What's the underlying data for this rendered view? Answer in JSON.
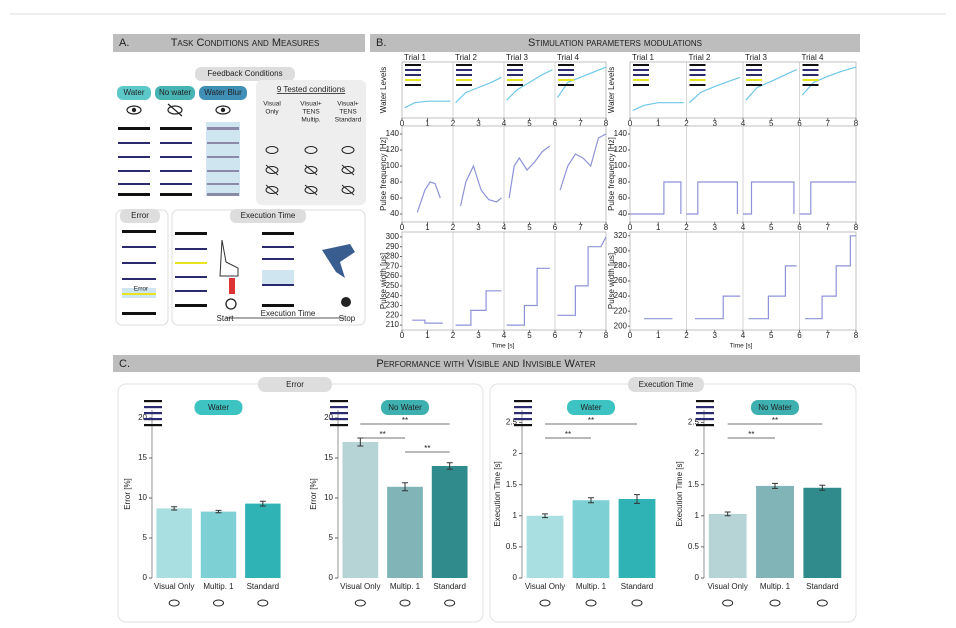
{
  "panel_a": {
    "label": "A.",
    "title": "Task Conditions and Measures",
    "feedback_title": "Feedback Conditions",
    "feedback": [
      "Water",
      "No water",
      "Water Blur"
    ],
    "tested_title": "9 Tested conditions",
    "tested": [
      [
        "Visual",
        "Only"
      ],
      [
        "Visual+",
        "TENS",
        "Multip."
      ],
      [
        "Visual+",
        "TENS",
        "Standard"
      ]
    ],
    "error_title": "Error",
    "error_label": "Error",
    "time_title": "Execution Time",
    "start": "Start",
    "time_label": "Execution Time",
    "stop": "Stop"
  },
  "panel_b": {
    "label": "B.",
    "title": "Stimulation parameters modulations",
    "trials": [
      "Trial 1",
      "Trial 2",
      "Trial 3",
      "Trial 4"
    ],
    "xlabel": "Time [s]"
  },
  "panel_c": {
    "label": "C.",
    "title": "Performance with Visible and Invisible Water",
    "groups": [
      "Error",
      "Execution Time"
    ]
  },
  "chart_data": [
    {
      "type": "line",
      "ylabel": "Water Levels",
      "x": [
        0.1,
        0.5,
        1.0,
        1.5,
        1.9,
        2.0,
        2.1,
        2.5,
        3.0,
        3.5,
        3.9,
        4.0,
        4.1,
        4.5,
        5.0,
        5.5,
        5.9,
        6.0,
        6.1,
        6.5,
        7.0,
        7.5,
        8.0
      ],
      "series": [
        {
          "color": "#6fc7e8",
          "values": [
            0.2,
            0.3,
            0.33,
            0.33,
            0.33,
            null,
            0.3,
            0.5,
            0.6,
            0.7,
            0.8,
            null,
            0.35,
            0.55,
            0.7,
            0.85,
            0.95,
            null,
            0.4,
            0.7,
            0.8,
            0.9,
            1.0
          ]
        }
      ],
      "xlim": [
        0,
        8
      ],
      "xticks": [
        0,
        1,
        2,
        3,
        4,
        5,
        6,
        7,
        8
      ],
      "ylim": [
        0,
        1.1
      ]
    },
    {
      "type": "line",
      "ylabel": "Pulse frequency [Hz]",
      "x": [
        0.6,
        0.9,
        1.1,
        1.3,
        1.5,
        2.0,
        2.3,
        2.5,
        2.8,
        3.1,
        3.4,
        3.7,
        3.9,
        4.0,
        4.2,
        4.4,
        4.6,
        4.9,
        5.2,
        5.5,
        5.8,
        6.0,
        6.2,
        6.5,
        6.8,
        7.1,
        7.4,
        7.7,
        8.0
      ],
      "series": [
        {
          "color": "#8e92d8",
          "values": [
            42,
            70,
            80,
            78,
            60,
            null,
            50,
            80,
            100,
            70,
            58,
            55,
            60,
            null,
            60,
            100,
            110,
            95,
            105,
            118,
            125,
            null,
            70,
            100,
            115,
            110,
            100,
            135,
            140
          ]
        }
      ],
      "xlim": [
        0,
        8
      ],
      "xticks": [
        0,
        1,
        2,
        3,
        4,
        5,
        6,
        7,
        8
      ],
      "ylim": [
        30,
        150
      ],
      "yticks": [
        40,
        60,
        80,
        100,
        120,
        140
      ]
    },
    {
      "type": "line",
      "ylabel": "Pulse width [μs]",
      "x": [
        0.4,
        0.9,
        0.9,
        1.6,
        2.0,
        2.1,
        2.7,
        2.7,
        3.3,
        3.3,
        3.9,
        4.0,
        4.1,
        4.8,
        4.8,
        5.3,
        5.3,
        5.8,
        6.0,
        6.1,
        6.8,
        6.8,
        7.3,
        7.3,
        7.8,
        8.0
      ],
      "series": [
        {
          "color": "#8e92d8",
          "values": [
            215,
            215,
            212,
            212,
            null,
            210,
            210,
            225,
            225,
            245,
            245,
            null,
            210,
            210,
            230,
            230,
            268,
            268,
            null,
            220,
            220,
            250,
            250,
            290,
            290,
            300
          ]
        }
      ],
      "xlim": [
        0,
        8
      ],
      "xticks": [
        0,
        1,
        2,
        3,
        4,
        5,
        6,
        7,
        8
      ],
      "ylim": [
        205,
        305
      ],
      "yticks": [
        210,
        220,
        230,
        240,
        250,
        260,
        270,
        280,
        290,
        300
      ]
    },
    {
      "type": "line",
      "ylabel": "Water Levels",
      "x": [
        0.1,
        0.5,
        1.0,
        1.5,
        1.9,
        2.0,
        2.1,
        2.5,
        3.0,
        3.5,
        3.9,
        4.0,
        4.1,
        4.5,
        5.0,
        5.5,
        5.9,
        6.0,
        6.1,
        6.5,
        7.0,
        7.5,
        8.0
      ],
      "series": [
        {
          "color": "#6fc7e8",
          "values": [
            0.15,
            0.25,
            0.3,
            0.3,
            0.3,
            null,
            0.3,
            0.5,
            0.62,
            0.72,
            0.8,
            null,
            0.35,
            0.6,
            0.72,
            0.85,
            0.95,
            null,
            0.45,
            0.7,
            0.82,
            0.92,
            1.0
          ]
        }
      ],
      "xlim": [
        0,
        8
      ],
      "xticks": [
        0,
        1,
        2,
        3,
        4,
        5,
        6,
        7,
        8
      ],
      "ylim": [
        0,
        1.1
      ]
    },
    {
      "type": "line",
      "ylabel": "Pulse frequency [Hz]",
      "x": [
        0,
        1.2,
        1.2,
        1.8,
        1.8,
        2.0,
        2.0,
        2.4,
        2.4,
        3.8,
        3.8,
        4.0,
        4.0,
        4.3,
        4.3,
        5.8,
        5.8,
        6.0,
        6.0,
        6.4,
        6.4,
        8.0
      ],
      "series": [
        {
          "color": "#8e92d8",
          "values": [
            40,
            40,
            80,
            80,
            40,
            null,
            40,
            40,
            80,
            80,
            40,
            null,
            40,
            40,
            80,
            80,
            40,
            null,
            40,
            40,
            80,
            80
          ]
        }
      ],
      "xlim": [
        0,
        8
      ],
      "xticks": [
        0,
        1,
        2,
        3,
        4,
        5,
        6,
        7,
        8
      ],
      "ylim": [
        30,
        150
      ],
      "yticks": [
        40,
        60,
        80,
        100,
        120,
        140
      ]
    },
    {
      "type": "line",
      "ylabel": "Pulse width [μs]",
      "x": [
        0.5,
        1.5,
        2.0,
        2.3,
        3.3,
        3.3,
        3.9,
        4.0,
        4.2,
        4.9,
        4.9,
        5.5,
        5.5,
        5.9,
        6.0,
        6.2,
        6.8,
        6.8,
        7.3,
        7.3,
        7.8,
        7.8,
        8.0
      ],
      "series": [
        {
          "color": "#8e92d8",
          "values": [
            210,
            210,
            null,
            210,
            210,
            240,
            240,
            null,
            210,
            210,
            240,
            240,
            280,
            280,
            null,
            210,
            210,
            240,
            240,
            280,
            280,
            320,
            320
          ]
        }
      ],
      "xlim": [
        0,
        8
      ],
      "xticks": [
        0,
        1,
        2,
        3,
        4,
        5,
        6,
        7,
        8
      ],
      "ylim": [
        195,
        325
      ],
      "yticks": [
        200,
        220,
        240,
        260,
        280,
        300,
        320
      ]
    },
    {
      "type": "bar",
      "title": "Water",
      "ylabel": "Error [%]",
      "categories": [
        "Visual Only",
        "Multip. 1",
        "Standard"
      ],
      "values": [
        8.7,
        8.3,
        9.3
      ],
      "errors": [
        0.2,
        0.15,
        0.3
      ],
      "colors": [
        "#a9dfe0",
        "#7dd0d4",
        "#2fb3b5"
      ],
      "title_color": "#3ec3c3",
      "ylim": [
        0,
        21
      ],
      "yticks": [
        0,
        5,
        10,
        15,
        20
      ],
      "annotations": []
    },
    {
      "type": "bar",
      "title": "No Water",
      "ylabel": "Error [%]",
      "categories": [
        "Visual Only",
        "Multip. 1",
        "Standard"
      ],
      "values": [
        17,
        11.4,
        14
      ],
      "errors": [
        0.5,
        0.5,
        0.4
      ],
      "colors": [
        "#b6d4d5",
        "#80b4b7",
        "#2f8b8c"
      ],
      "title_color": "#3fb0b0",
      "ylim": [
        0,
        21
      ],
      "yticks": [
        0,
        5,
        10,
        15,
        20
      ],
      "annotations": [
        "**",
        "**",
        "**"
      ]
    },
    {
      "type": "bar",
      "title": "Water",
      "ylabel": "Execution Time [s]",
      "categories": [
        "Visual Only",
        "Multip. 1",
        "Standard"
      ],
      "values": [
        1.0,
        1.25,
        1.27
      ],
      "errors": [
        0.03,
        0.04,
        0.07
      ],
      "colors": [
        "#a9dfe0",
        "#7dd0d4",
        "#2fb3b5"
      ],
      "title_color": "#3ec3c3",
      "ylim": [
        0,
        2.7
      ],
      "yticks": [
        0,
        0.5,
        1,
        1.5,
        2,
        2.5
      ],
      "annotations": [
        "**",
        "**"
      ]
    },
    {
      "type": "bar",
      "title": "No Water",
      "ylabel": "Execution Time [s]",
      "categories": [
        "Visual Only",
        "Multip. 1",
        "Standard"
      ],
      "values": [
        1.03,
        1.48,
        1.45
      ],
      "errors": [
        0.03,
        0.04,
        0.04
      ],
      "colors": [
        "#b6d4d5",
        "#80b4b7",
        "#2f8b8c"
      ],
      "title_color": "#3fb0b0",
      "ylim": [
        0,
        2.7
      ],
      "yticks": [
        0,
        0.5,
        1,
        1.5,
        2,
        2.5
      ],
      "annotations": [
        "**",
        "**"
      ]
    }
  ]
}
